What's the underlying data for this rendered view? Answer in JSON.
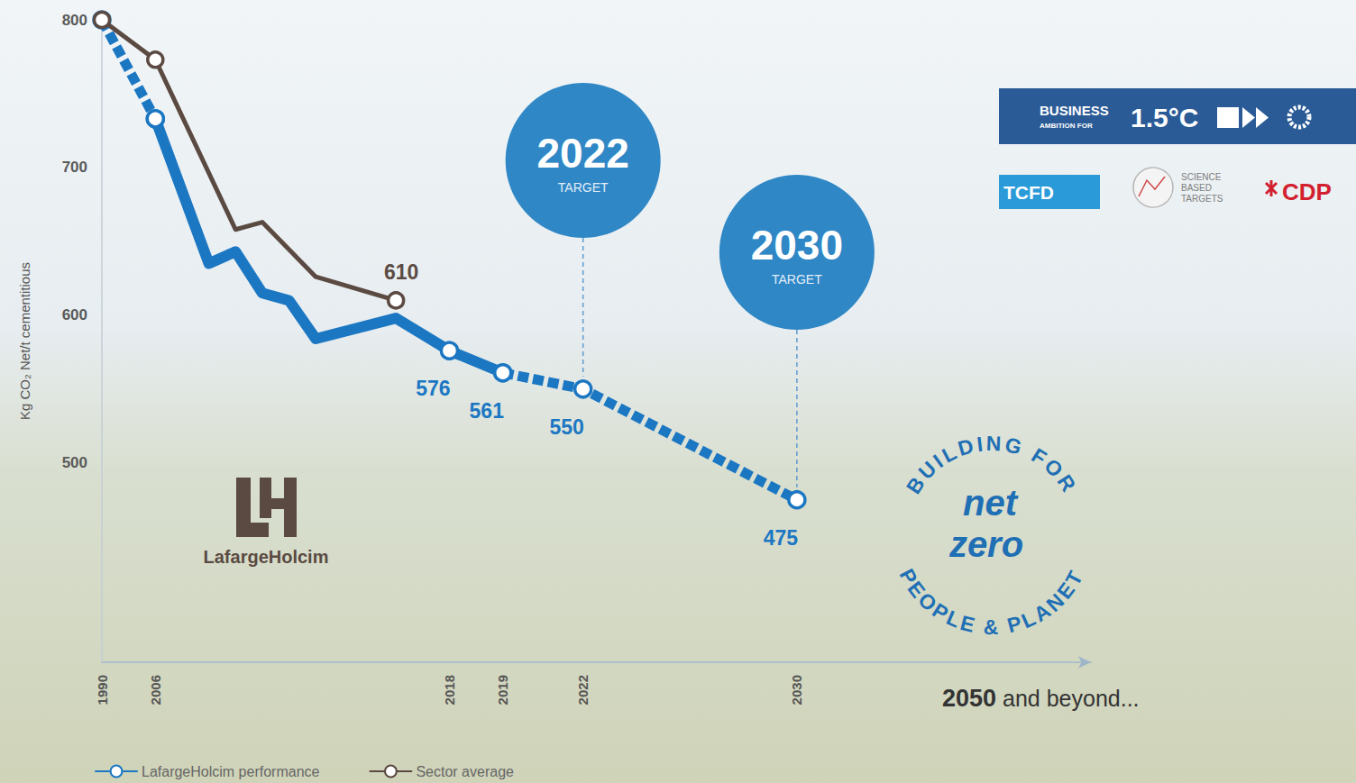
{
  "chart_data": {
    "type": "line",
    "y_label": "Kg CO₂ Net/t cementitious",
    "categories": [
      "1990",
      null,
      "2006",
      null,
      null,
      null,
      null,
      null,
      null,
      null,
      null,
      null,
      null,
      "2018",
      null,
      "2019",
      null,
      null,
      "2022",
      null,
      null,
      null,
      null,
      null,
      null,
      null,
      "2030",
      null,
      null,
      null,
      null,
      null,
      null,
      null,
      null,
      null,
      null,
      null
    ],
    "ylim": [
      365,
      800
    ],
    "yticks": [
      500,
      600,
      700,
      800
    ],
    "grid": false,
    "legend": "bottom left",
    "series": [
      {
        "name": "LafargeHolcim performance",
        "color": "#1c77c3",
        "line_style": "solid",
        "marker": "circle",
        "values": [
          null,
          null,
          733,
          null,
          635,
          643,
          615,
          610,
          584,
          null,
          null,
          598,
          null,
          576,
          null,
          561,
          null,
          null,
          null,
          null,
          null,
          null,
          null,
          null,
          null,
          null,
          null,
          null,
          null,
          null,
          null,
          null,
          null,
          null,
          null,
          null,
          null,
          null
        ],
        "value_labels": [
          null,
          null,
          null,
          null,
          null,
          null,
          null,
          null,
          null,
          null,
          null,
          null,
          null,
          "576",
          null,
          "561",
          null,
          null,
          null,
          null,
          null,
          null,
          null,
          null,
          null,
          null,
          null,
          null,
          null,
          null,
          null,
          null,
          null,
          null,
          null,
          null,
          null,
          null
        ]
      },
      {
        "name": "LafargeHolcim performance",
        "color": "#1c77c3",
        "line_style": "dashed",
        "marker": "circle",
        "values": [
          800,
          null,
          733,
          null,
          null,
          null,
          null,
          null,
          null,
          null,
          null,
          null,
          null,
          null,
          null,
          null,
          null,
          null,
          null,
          null,
          null,
          null,
          null,
          null,
          null,
          null,
          null,
          null,
          null,
          null,
          null,
          null,
          null,
          null,
          null,
          null,
          null,
          null
        ]
      },
      {
        "name": "LafargeHolcim performance",
        "color": "#1c77c3",
        "line_style": "dashed",
        "marker": "circle",
        "values": [
          null,
          null,
          null,
          null,
          null,
          null,
          null,
          null,
          null,
          null,
          null,
          null,
          null,
          null,
          null,
          561,
          null,
          null,
          550,
          null,
          null,
          null,
          null,
          null,
          null,
          null,
          475,
          null,
          null,
          null,
          null,
          null,
          null,
          null,
          null,
          null,
          null,
          null
        ],
        "value_labels": [
          null,
          null,
          null,
          null,
          null,
          null,
          null,
          null,
          null,
          null,
          null,
          null,
          null,
          null,
          null,
          null,
          null,
          null,
          "550",
          null,
          null,
          null,
          null,
          null,
          null,
          null,
          "475",
          null,
          null,
          null,
          null,
          null,
          null,
          null,
          null,
          null,
          null,
          null
        ]
      },
      {
        "name": "Sector average",
        "color": "#5b4a42",
        "line_style": "solid",
        "marker": "circle",
        "values": [
          800,
          null,
          773,
          null,
          null,
          658,
          663,
          null,
          626,
          null,
          null,
          610,
          null,
          null,
          null,
          null,
          null,
          null,
          null,
          null,
          null,
          null,
          null,
          null,
          null,
          null,
          null,
          null,
          null,
          null,
          null,
          null,
          null,
          null,
          null,
          null,
          null,
          null
        ],
        "value_labels": [
          null,
          null,
          null,
          null,
          null,
          null,
          null,
          null,
          null,
          null,
          null,
          "610",
          null,
          null,
          null,
          null,
          null,
          null,
          null,
          null,
          null,
          null,
          null,
          null,
          null,
          null,
          null,
          null,
          null,
          null,
          null,
          null,
          null,
          null,
          null,
          null,
          null,
          null
        ]
      }
    ],
    "annotations": [
      {
        "text": "2022",
        "subtext": "TARGET",
        "x": "2022"
      },
      {
        "text": "2030",
        "subtext": "TARGET",
        "x": "2030"
      }
    ],
    "axis_end_label": "2050 and beyond...",
    "company": "LafargeHolcim",
    "badges": {
      "business": [
        "BUSINESS",
        "AMBITION FOR",
        "1.5°C"
      ],
      "tcfd": "TCFD",
      "sbt": "SCIENCE BASED TARGETS",
      "cdp": "CDP"
    },
    "emblem": {
      "ring_top": "BUILDING FOR",
      "ring_bottom": "PEOPLE & PLANET",
      "center": "net zero"
    }
  }
}
